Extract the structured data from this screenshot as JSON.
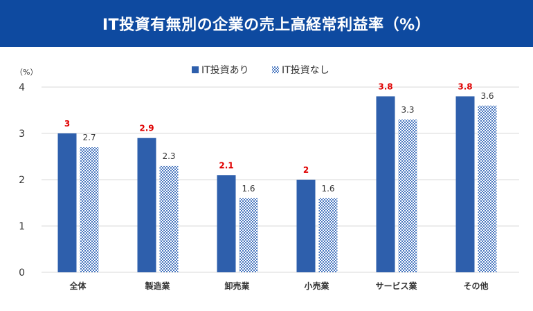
{
  "title": "IT投資有無別の企業の売上高経常利益率（%）",
  "colors": {
    "title_bg": "#0e4aa0",
    "series_a": "#2e5fac",
    "series_b": "#4a78c0",
    "value_a": "#e00000",
    "value_b": "#333333",
    "grid": "#d9d9d9"
  },
  "chart_data": {
    "type": "bar",
    "title": "IT投資有無別の企業の売上高経常利益率（%）",
    "unit_label": "（%）",
    "categories": [
      "全体",
      "製造業",
      "卸売業",
      "小売業",
      "サービス業",
      "その他"
    ],
    "series": [
      {
        "name": "IT投資あり",
        "values": [
          3,
          2.9,
          2.1,
          2,
          3.8,
          3.8
        ],
        "labels": [
          "3",
          "2.9",
          "2.1",
          "2",
          "3.8",
          "3.8"
        ],
        "fill": "solid"
      },
      {
        "name": "IT投資なし",
        "values": [
          2.7,
          2.3,
          1.6,
          1.6,
          3.3,
          3.6
        ],
        "labels": [
          "2.7",
          "2.3",
          "1.6",
          "1.6",
          "3.3",
          "3.6"
        ],
        "fill": "checkered"
      }
    ],
    "ylim": [
      0,
      4
    ],
    "yticks": [
      0,
      1,
      2,
      3,
      4
    ],
    "grid": true,
    "legend_position": "top-center"
  }
}
